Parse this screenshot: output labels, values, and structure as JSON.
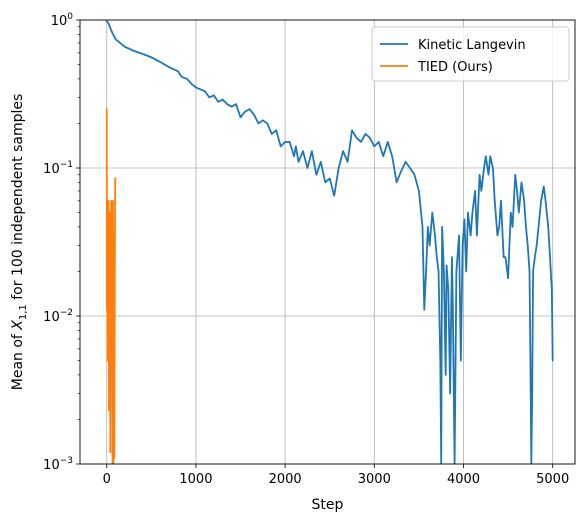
{
  "chart_data": {
    "type": "line",
    "xlabel": "Step",
    "ylabel": {
      "prefix": "Mean of ",
      "var": "X",
      "sub": "1,1",
      "suffix": " for 100 independent samples"
    },
    "xlim": [
      -300,
      5250
    ],
    "ylim": [
      0.001,
      1
    ],
    "yscale": "log",
    "grid": true,
    "legend_position": "top-right",
    "xticks": [
      0,
      1000,
      2000,
      3000,
      4000,
      5000
    ],
    "xtick_labels": [
      "0",
      "1000",
      "2000",
      "3000",
      "4000",
      "5000"
    ],
    "yticks": [
      0.001,
      0.01,
      0.1,
      1
    ],
    "ytick_labels": [
      {
        "base": "10",
        "exp": "−3"
      },
      {
        "base": "10",
        "exp": "−2"
      },
      {
        "base": "10",
        "exp": "−1"
      },
      {
        "base": "10",
        "exp": "0"
      }
    ],
    "series": [
      {
        "name": "Kinetic Langevin",
        "color": "#1f77b4",
        "x": [
          0,
          20,
          50,
          80,
          100,
          150,
          200,
          300,
          400,
          500,
          600,
          700,
          800,
          830,
          850,
          900,
          950,
          1000,
          1050,
          1100,
          1150,
          1200,
          1250,
          1300,
          1350,
          1400,
          1450,
          1500,
          1550,
          1600,
          1650,
          1700,
          1750,
          1800,
          1850,
          1900,
          1950,
          2000,
          2050,
          2100,
          2120,
          2150,
          2200,
          2250,
          2300,
          2350,
          2400,
          2450,
          2500,
          2550,
          2600,
          2650,
          2700,
          2750,
          2800,
          2850,
          2900,
          2950,
          3000,
          3050,
          3100,
          3150,
          3200,
          3250,
          3300,
          3350,
          3400,
          3450,
          3500,
          3540,
          3560,
          3580,
          3600,
          3620,
          3650,
          3680,
          3700,
          3720,
          3740,
          3750,
          3760,
          3780,
          3800,
          3810,
          3830,
          3850,
          3870,
          3880,
          3900,
          3920,
          3950,
          3970,
          3990,
          4010,
          4030,
          4050,
          4080,
          4100,
          4130,
          4150,
          4180,
          4200,
          4230,
          4250,
          4280,
          4300,
          4330,
          4350,
          4380,
          4400,
          4420,
          4450,
          4470,
          4500,
          4530,
          4550,
          4580,
          4600,
          4620,
          4650,
          4680,
          4700,
          4720,
          4740,
          4750,
          4760,
          4770,
          4780,
          4800,
          4820,
          4850,
          4870,
          4900,
          4920,
          4950,
          4970,
          4990,
          5000
        ],
        "y": [
          0.98,
          0.95,
          0.85,
          0.78,
          0.74,
          0.7,
          0.66,
          0.62,
          0.59,
          0.56,
          0.52,
          0.48,
          0.45,
          0.42,
          0.41,
          0.4,
          0.37,
          0.35,
          0.34,
          0.33,
          0.3,
          0.31,
          0.28,
          0.29,
          0.27,
          0.26,
          0.27,
          0.22,
          0.24,
          0.25,
          0.23,
          0.2,
          0.21,
          0.2,
          0.17,
          0.18,
          0.14,
          0.15,
          0.15,
          0.12,
          0.14,
          0.11,
          0.13,
          0.1,
          0.13,
          0.09,
          0.11,
          0.08,
          0.085,
          0.065,
          0.1,
          0.13,
          0.11,
          0.18,
          0.16,
          0.15,
          0.17,
          0.16,
          0.14,
          0.15,
          0.12,
          0.15,
          0.12,
          0.08,
          0.095,
          0.11,
          0.1,
          0.09,
          0.07,
          0.04,
          0.011,
          0.02,
          0.04,
          0.03,
          0.05,
          0.035,
          0.025,
          0.02,
          0.005,
          0.001,
          0.04,
          0.02,
          0.004,
          0.022,
          0.015,
          0.003,
          0.025,
          0.012,
          0.001,
          0.02,
          0.035,
          0.005,
          0.03,
          0.045,
          0.02,
          0.05,
          0.035,
          0.05,
          0.07,
          0.035,
          0.09,
          0.07,
          0.1,
          0.12,
          0.09,
          0.12,
          0.1,
          0.06,
          0.035,
          0.04,
          0.06,
          0.025,
          0.025,
          0.018,
          0.05,
          0.04,
          0.09,
          0.07,
          0.05,
          0.08,
          0.06,
          0.04,
          0.03,
          0.02,
          0.005,
          0.001,
          0.003,
          0.02,
          0.025,
          0.03,
          0.045,
          0.06,
          0.075,
          0.06,
          0.04,
          0.025,
          0.015,
          0.005
        ]
      },
      {
        "name": "TIED (Ours)",
        "color": "#ff7f0e",
        "x": [
          0,
          2,
          5,
          8,
          12,
          15,
          20,
          25,
          30,
          35,
          40,
          45,
          50,
          55,
          60,
          65,
          70,
          75,
          80,
          85,
          90,
          95,
          100
        ],
        "y": [
          0.25,
          0.011,
          0.04,
          0.005,
          0.03,
          0.01,
          0.06,
          0.0023,
          0.015,
          0.05,
          0.0012,
          0.028,
          0.06,
          0.004,
          0.015,
          0.001,
          0.06,
          0.001,
          0.035,
          0.0011,
          0.02,
          0.085,
          0.085
        ]
      }
    ]
  }
}
